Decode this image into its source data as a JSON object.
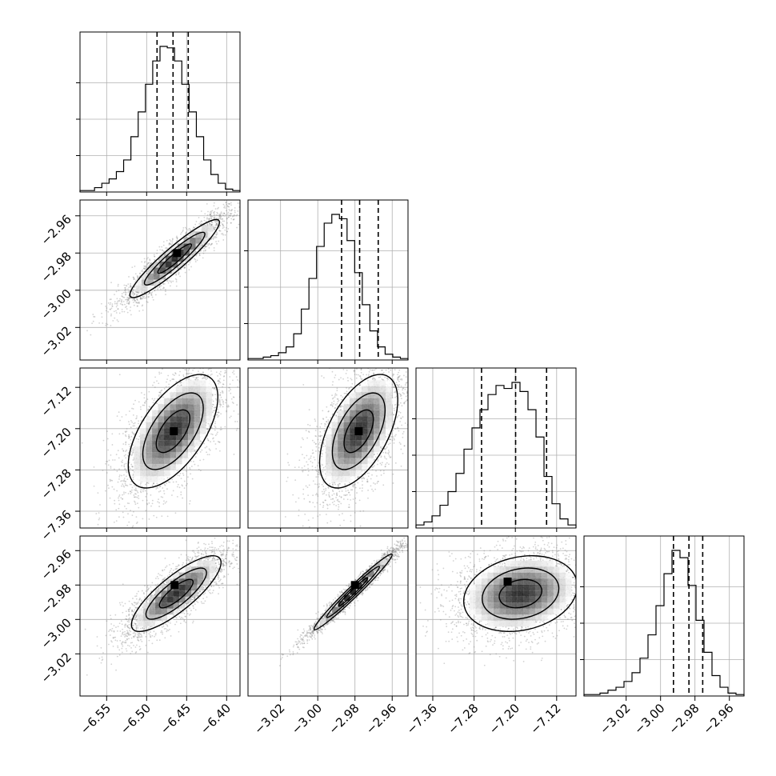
{
  "chart_data": {
    "type": "corner",
    "grid": true,
    "colors": {
      "ink": "#000000",
      "grid": "#b0b0b0",
      "points": "#808080"
    },
    "parameters": [
      {
        "range": [
          -6.5833,
          -6.3833
        ],
        "ticks": [
          -6.55,
          -6.5,
          -6.45,
          -6.4
        ],
        "tick_labels": [
          "−6.55",
          "−6.50",
          "−6.45",
          "−6.40"
        ]
      },
      {
        "range": [
          -3.0375,
          -2.9515
        ],
        "ticks": [
          -3.02,
          -3.0,
          -2.98,
          -2.96
        ],
        "tick_labels": [
          "−3.02",
          "−3.00",
          "−2.98",
          "−2.96"
        ]
      },
      {
        "range": [
          -7.3925,
          -7.0825
        ],
        "ticks": [
          -7.36,
          -7.28,
          -7.2,
          -7.12
        ],
        "tick_labels": [
          "−7.36",
          "−7.28",
          "−7.20",
          "−7.12"
        ]
      },
      {
        "range": [
          -3.0445,
          -2.9515
        ],
        "ticks": [
          -3.02,
          -3.0,
          -2.98,
          -2.96
        ],
        "tick_labels": [
          "−3.02",
          "−3.00",
          "−2.98",
          "−2.96"
        ]
      }
    ],
    "histograms": [
      {
        "bin_edges_range": [
          -6.5833,
          -6.3833
        ],
        "counts": [
          1,
          1,
          3,
          6,
          9,
          14,
          22,
          38,
          55,
          74,
          90,
          100,
          99,
          90,
          74,
          55,
          38,
          22,
          12,
          6,
          2,
          1
        ],
        "quantiles": [
          -6.487,
          -6.467,
          -6.448
        ]
      },
      {
        "bin_edges_range": [
          -3.0375,
          -2.9515
        ],
        "counts": [
          1,
          1,
          2,
          3,
          5,
          9,
          18,
          35,
          56,
          78,
          94,
          100,
          97,
          82,
          60,
          38,
          20,
          9,
          4,
          2,
          1
        ],
        "quantiles": [
          -2.9872,
          -2.9775,
          -2.9675
        ]
      },
      {
        "bin_edges_range": [
          -7.3925,
          -7.0825
        ],
        "counts": [
          2,
          4,
          8,
          15,
          24,
          36,
          52,
          66,
          78,
          88,
          94,
          92,
          96,
          90,
          78,
          60,
          34,
          16,
          6,
          2
        ],
        "quantiles": [
          -7.2655,
          -7.1995,
          -7.1395
        ]
      },
      {
        "bin_edges_range": [
          -3.0445,
          -2.9515
        ],
        "counts": [
          1,
          1,
          2,
          4,
          6,
          10,
          16,
          26,
          42,
          62,
          84,
          100,
          95,
          76,
          52,
          30,
          14,
          6,
          2,
          1
        ],
        "quantiles": [
          -2.9925,
          -2.9835,
          -2.9755
        ]
      }
    ],
    "pairs": [
      {
        "x": 0,
        "y": 1,
        "mean": [
          -6.465,
          -2.983
        ],
        "sd": [
          0.028,
          0.0105
        ],
        "corr": 0.93,
        "peak": [
          -6.462,
          -2.98
        ]
      },
      {
        "x": 0,
        "y": 2,
        "mean": [
          -6.467,
          -7.205
        ],
        "sd": [
          0.028,
          0.055
        ],
        "corr": 0.6,
        "peak": [
          -6.466,
          -7.205
        ]
      },
      {
        "x": 1,
        "y": 2,
        "mean": [
          -2.978,
          -7.205
        ],
        "sd": [
          0.0105,
          0.055
        ],
        "corr": 0.55,
        "peak": [
          -2.978,
          -7.205
        ]
      },
      {
        "x": 0,
        "y": 3,
        "mean": [
          -6.463,
          -2.985
        ],
        "sd": [
          0.028,
          0.011
        ],
        "corr": 0.82,
        "peak": [
          -6.465,
          -2.98
        ]
      },
      {
        "x": 1,
        "y": 3,
        "mean": [
          -2.981,
          -2.984
        ],
        "sd": [
          0.0105,
          0.011
        ],
        "corr": 0.98,
        "peak": [
          -2.98,
          -2.98
        ]
      },
      {
        "x": 2,
        "y": 3,
        "mean": [
          -7.19,
          -2.985
        ],
        "sd": [
          0.055,
          0.011
        ],
        "corr": 0.2,
        "peak": [
          -7.215,
          -2.978
        ]
      }
    ]
  }
}
